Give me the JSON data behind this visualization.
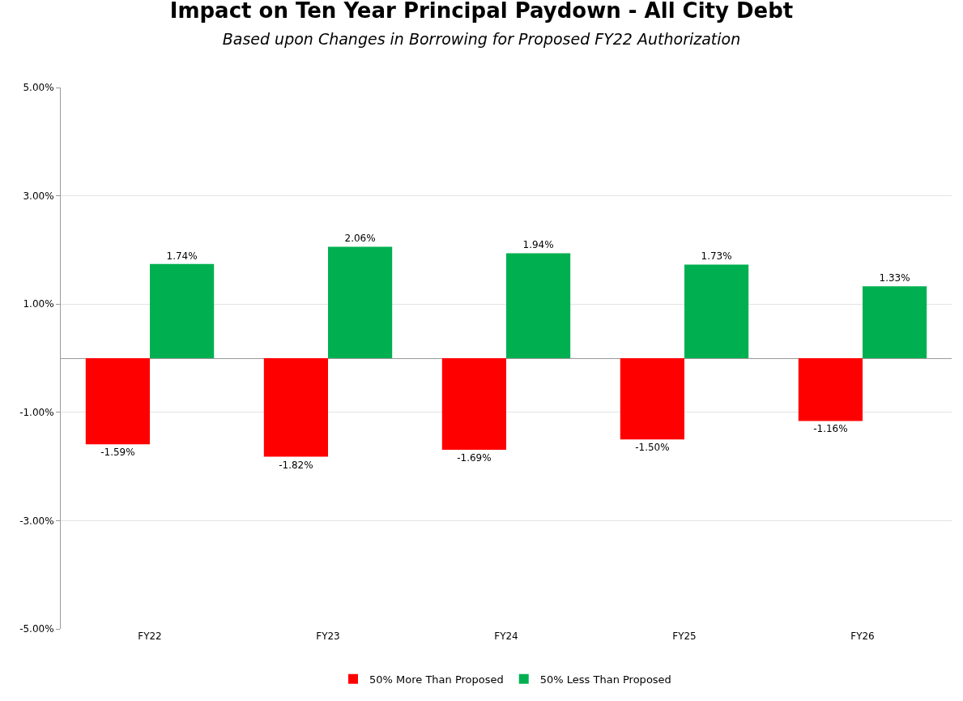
{
  "chart_data": {
    "type": "bar",
    "title": "Impact on Ten Year Principal Paydown - All City Debt",
    "subtitle": "Based upon Changes in Borrowing for Proposed FY22 Authorization",
    "categories": [
      "FY22",
      "FY23",
      "FY24",
      "FY25",
      "FY26"
    ],
    "series": [
      {
        "name": "50% More Than Proposed",
        "color": "#ff0000",
        "values": [
          -1.59,
          -1.82,
          -1.69,
          -1.5,
          -1.16
        ],
        "value_labels": [
          "-1.59%",
          "-1.82%",
          "-1.69%",
          "-1.50%",
          "-1.16%"
        ]
      },
      {
        "name": "50% Less Than Proposed",
        "color": "#00b050",
        "values": [
          1.74,
          2.06,
          1.94,
          1.73,
          1.33
        ],
        "value_labels": [
          "1.74%",
          "2.06%",
          "1.94%",
          "1.73%",
          "1.33%"
        ]
      }
    ],
    "ylim": [
      -5,
      5
    ],
    "yticks": [
      {
        "value": -5,
        "label": "-5.00%"
      },
      {
        "value": -3,
        "label": "-3.00%"
      },
      {
        "value": -1,
        "label": "-1.00%"
      },
      {
        "value": 1,
        "label": "1.00%"
      },
      {
        "value": 3,
        "label": "3.00%"
      },
      {
        "value": 5,
        "label": "5.00%"
      }
    ],
    "grid": "y",
    "legend": "bottom"
  }
}
